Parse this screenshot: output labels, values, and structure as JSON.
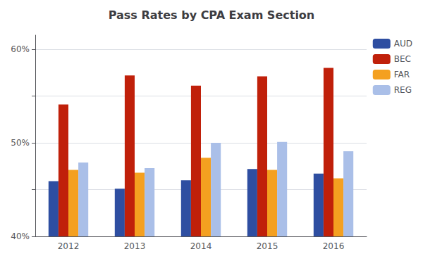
{
  "chart_data": {
    "type": "bar",
    "title": "Pass Rates by CPA Exam Section",
    "categories": [
      "2012",
      "2013",
      "2014",
      "2015",
      "2016"
    ],
    "series": [
      {
        "name": "AUD",
        "color": "#2E4EA1",
        "values": [
          0.459,
          0.451,
          0.46,
          0.472,
          0.467
        ]
      },
      {
        "name": "BEC",
        "color": "#C0200A",
        "values": [
          0.541,
          0.572,
          0.561,
          0.571,
          0.58
        ]
      },
      {
        "name": "FAR",
        "color": "#F4A020",
        "values": [
          0.471,
          0.468,
          0.484,
          0.471,
          0.462
        ]
      },
      {
        "name": "REG",
        "color": "#AABFE8",
        "values": [
          0.479,
          0.473,
          0.5,
          0.501,
          0.491
        ]
      }
    ],
    "ylim": [
      0.4,
      0.615
    ],
    "yticks": [
      {
        "value": 0.4,
        "label": "40%"
      },
      {
        "value": 0.45,
        "label": null
      },
      {
        "value": 0.5,
        "label": "50%"
      },
      {
        "value": 0.55,
        "label": null
      },
      {
        "value": 0.6,
        "label": "60%"
      }
    ],
    "grid": true,
    "legend": "right"
  }
}
